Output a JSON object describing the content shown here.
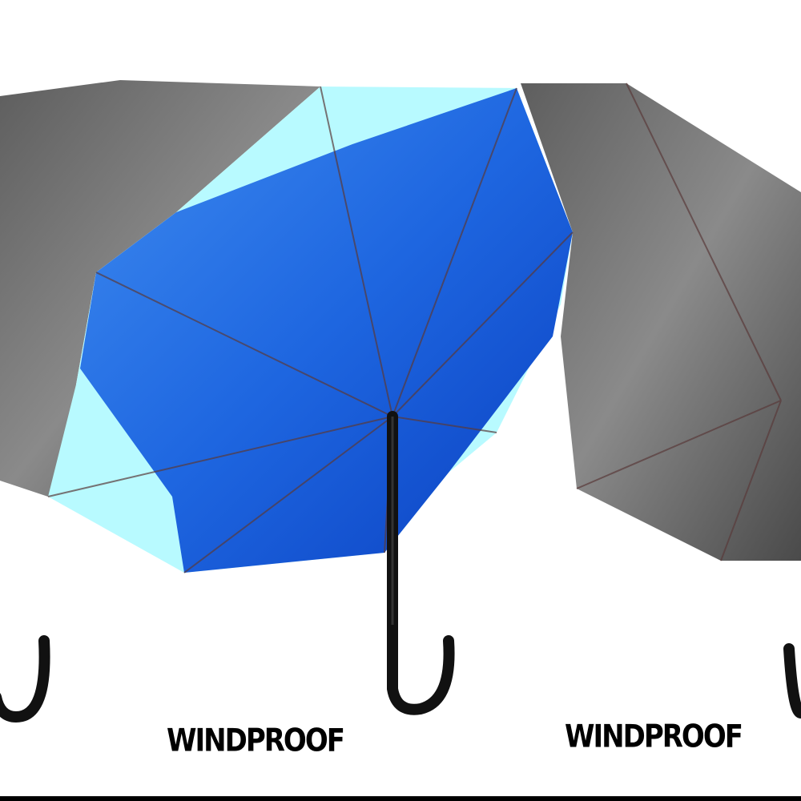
{
  "captions": {
    "left": "WINDPROOF",
    "right": "WINDPROOF"
  },
  "colors": {
    "canopy_blue": "#1e66e0",
    "canopy_light": "#b8faff",
    "canopy_gray": "#6e6e6e",
    "handle": "#111111"
  }
}
